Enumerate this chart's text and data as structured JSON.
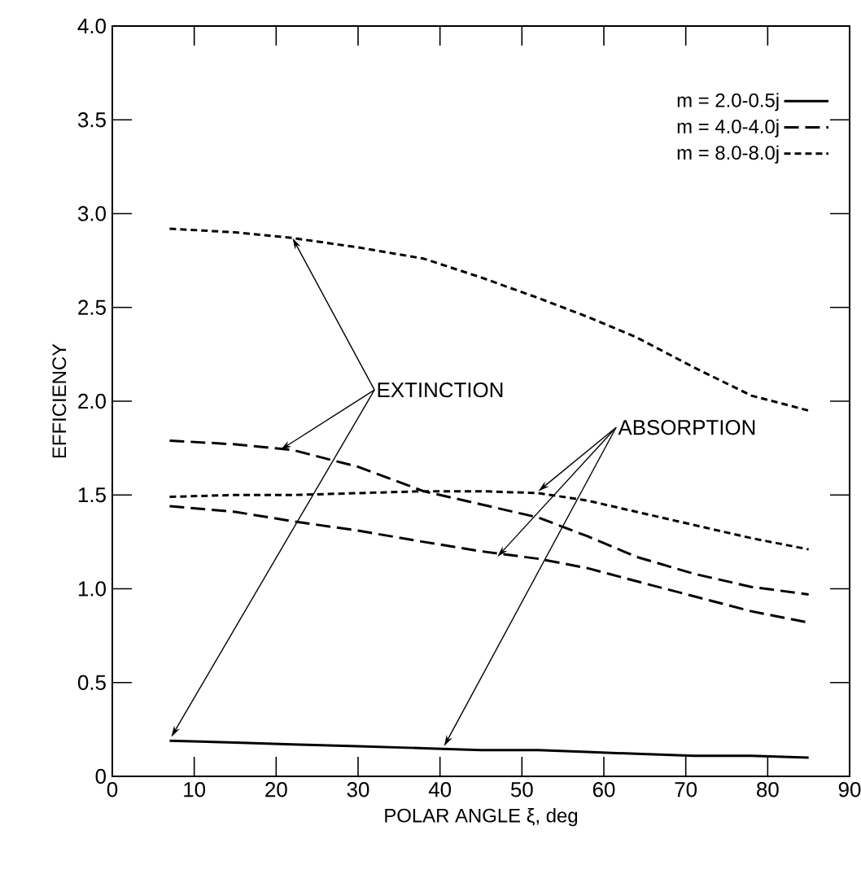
{
  "chart_data": {
    "type": "line",
    "xlabel": "POLAR ANGLE ξ, deg",
    "ylabel": "EFFICIENCY",
    "x": [
      7,
      15,
      22,
      30,
      38,
      45,
      52,
      58,
      64,
      71,
      78,
      85
    ],
    "series": [
      {
        "name": "m = 2.0-0.5j",
        "color": "#000000",
        "line_style": "solid",
        "values": [
          0.19,
          0.18,
          0.17,
          0.16,
          0.15,
          0.14,
          0.14,
          0.13,
          0.12,
          0.11,
          0.11,
          0.1
        ]
      },
      {
        "name": "m = 4.0-4.0j",
        "color": "#000000",
        "line_style": "dashed",
        "values": [
          1.79,
          1.77,
          1.74,
          1.65,
          1.52,
          1.45,
          1.38,
          1.28,
          1.17,
          1.08,
          1.01,
          0.97
        ]
      },
      {
        "color": "#000000",
        "line_style": "dashed",
        "values": [
          1.44,
          1.41,
          1.36,
          1.31,
          1.25,
          1.2,
          1.16,
          1.11,
          1.04,
          0.96,
          0.88,
          0.82
        ]
      },
      {
        "name": "m = 8.0-8.0j",
        "color": "#000000",
        "line_style": "dotted",
        "values": [
          2.92,
          2.9,
          2.87,
          2.82,
          2.76,
          2.66,
          2.55,
          2.45,
          2.34,
          2.18,
          2.03,
          1.95
        ]
      },
      {
        "color": "#000000",
        "line_style": "dotted",
        "values": [
          1.49,
          1.5,
          1.5,
          1.51,
          1.52,
          1.52,
          1.51,
          1.47,
          1.41,
          1.34,
          1.27,
          1.21
        ]
      }
    ],
    "xlim": [
      0,
      90
    ],
    "xticks": [
      0,
      10,
      20,
      30,
      40,
      50,
      60,
      70,
      80,
      90
    ],
    "ylim": [
      0,
      4.0
    ],
    "yticks": [
      0,
      0.5,
      {
        "value": 1,
        "label": "1.0"
      },
      1.5,
      {
        "value": 2,
        "label": "2.0"
      },
      2.5,
      {
        "value": 3,
        "label": "3.0"
      },
      3.5,
      {
        "value": 4,
        "label": "4.0"
      }
    ],
    "legend": "top right",
    "grid": false,
    "marker": "none",
    "annotations": [
      {
        "text": "EXTINCTION",
        "x": 22,
        "y": 2.87
      },
      {
        "text": "ABSORPTION",
        "x": 52,
        "y": 1.52
      }
    ]
  }
}
